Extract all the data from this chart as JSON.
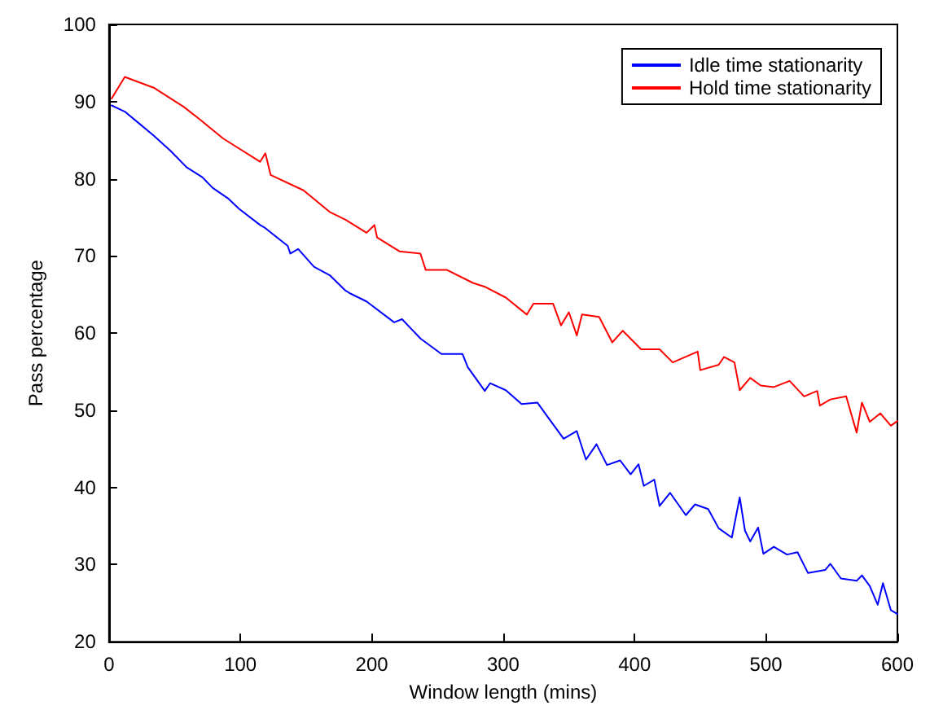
{
  "chart_data": {
    "type": "line",
    "xlabel": "Window length (mins)",
    "ylabel": "Pass percentage",
    "xlim": [
      0,
      600
    ],
    "ylim": [
      20,
      100
    ],
    "xticks": [
      0,
      100,
      200,
      300,
      400,
      500,
      600
    ],
    "yticks": [
      20,
      30,
      40,
      50,
      60,
      70,
      80,
      90,
      100
    ],
    "grid": false,
    "legend": "top right",
    "marker": "none",
    "line_style": "solid",
    "series": [
      {
        "name": "Idle time stationarity",
        "color": "#0000ff",
        "x": [
          2,
          12,
          22,
          34,
          47,
          59,
          71,
          79,
          91,
          99,
          115,
          119,
          136,
          138,
          144,
          156,
          168,
          180,
          184,
          196,
          217,
          223,
          237,
          253,
          269,
          273,
          286,
          290,
          302,
          314,
          326,
          334,
          346,
          356,
          363,
          371,
          379,
          389,
          397,
          403,
          407,
          415,
          419,
          427,
          439,
          446,
          456,
          464,
          474,
          480,
          484,
          488,
          494,
          498,
          506,
          516,
          524,
          532,
          545,
          549,
          557,
          569,
          573,
          579,
          585,
          589,
          595,
          600
        ],
        "values": [
          89.5,
          88.7,
          87.3,
          85.6,
          83.6,
          81.5,
          80.2,
          78.8,
          77.4,
          76.1,
          74.0,
          73.6,
          71.3,
          70.3,
          70.9,
          68.6,
          67.5,
          65.5,
          65.1,
          64.1,
          61.4,
          61.8,
          59.3,
          57.3,
          57.3,
          55.6,
          52.5,
          53.5,
          52.6,
          50.8,
          51.0,
          49.1,
          46.3,
          47.3,
          43.6,
          45.6,
          42.9,
          43.5,
          41.7,
          43.0,
          40.2,
          41.0,
          37.6,
          39.3,
          36.4,
          37.8,
          37.2,
          34.7,
          33.5,
          38.7,
          34.4,
          33.0,
          34.8,
          31.4,
          32.3,
          31.3,
          31.6,
          28.9,
          29.3,
          30.1,
          28.2,
          27.9,
          28.6,
          27.2,
          24.8,
          27.6,
          24.1,
          23.6
        ]
      },
      {
        "name": "Hold time stationarity",
        "color": "#ff0000",
        "x": [
          2,
          12,
          34,
          57,
          69,
          87,
          115,
          119,
          123,
          148,
          168,
          180,
          196,
          202,
          204,
          221,
          237,
          241,
          257,
          277,
          286,
          302,
          318,
          323,
          338,
          344,
          350,
          356,
          360,
          373,
          383,
          391,
          405,
          419,
          429,
          448,
          450,
          464,
          468,
          476,
          480,
          488,
          496,
          506,
          518,
          529,
          539,
          541,
          549,
          561,
          569,
          573,
          579,
          587,
          595,
          600
        ],
        "values": [
          90.4,
          93.2,
          91.8,
          89.3,
          87.7,
          85.2,
          82.2,
          83.3,
          80.5,
          78.5,
          75.7,
          74.7,
          73.0,
          74.0,
          72.4,
          70.6,
          70.3,
          68.2,
          68.2,
          66.5,
          66.0,
          64.6,
          62.4,
          63.8,
          63.8,
          61.0,
          62.7,
          59.7,
          62.4,
          62.1,
          58.8,
          60.3,
          57.9,
          57.9,
          56.2,
          57.6,
          55.2,
          55.9,
          56.9,
          56.2,
          52.6,
          54.2,
          53.2,
          53.0,
          53.8,
          51.8,
          52.5,
          50.6,
          51.4,
          51.8,
          47.1,
          51.0,
          48.5,
          49.6,
          48.0,
          48.6
        ]
      }
    ]
  }
}
